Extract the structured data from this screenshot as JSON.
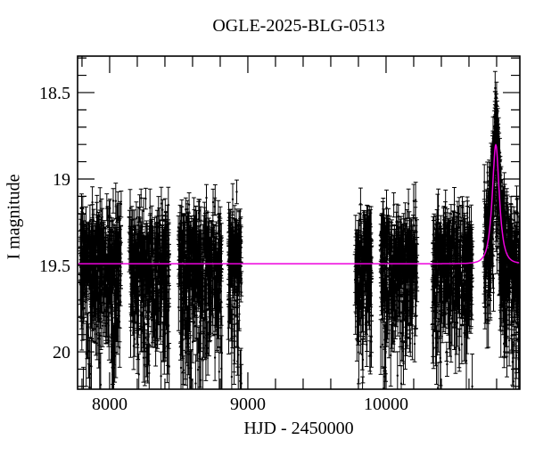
{
  "chart_data": {
    "type": "scatter",
    "title": "OGLE-2025-BLG-0513",
    "xlabel": "HJD - 2450000",
    "ylabel": "I magnitude",
    "xlim": [
      7768,
      10968
    ],
    "ylim": [
      20.216,
      18.289
    ],
    "y_axis_inverted_magnitude": true,
    "grid": false,
    "x_major_ticks": [
      8000,
      9000,
      10000
    ],
    "x_major_tick_labels": [
      "8000",
      "9000",
      "10000"
    ],
    "x_minor_tick_step": 200,
    "y_major_ticks": [
      18.5,
      19.0,
      19.5,
      20.0
    ],
    "y_major_tick_labels": [
      "18.5",
      "19",
      "19.5",
      "20"
    ],
    "y_minor_tick_step": 0.1,
    "colors": {
      "background": "#ffffff",
      "axes": "#000000",
      "data_points": "#000000",
      "model_curve": "#ee00dd"
    },
    "model": {
      "type": "paczynski_microlensing",
      "baseline_mag": 19.49,
      "peak_mag": 18.82,
      "t0": 10794,
      "tE": 40,
      "u0": 0.6
    },
    "observing_seasons": [
      {
        "t_start": 7787,
        "t_end": 8084,
        "n": 430
      },
      {
        "t_start": 8142,
        "t_end": 8432,
        "n": 400
      },
      {
        "t_start": 8497,
        "t_end": 8813,
        "n": 430
      },
      {
        "t_start": 8858,
        "t_end": 8955,
        "n": 140
      },
      {
        "t_start": 9774,
        "t_end": 9897,
        "n": 170
      },
      {
        "t_start": 9961,
        "t_end": 10226,
        "n": 360
      },
      {
        "t_start": 10335,
        "t_end": 10626,
        "n": 390
      },
      {
        "t_start": 10710,
        "t_end": 10968,
        "n": 420,
        "n_extra_peak": 150,
        "peak_sigma_days": 42
      }
    ],
    "scatter": {
      "sigma_bright": 0.14,
      "sigma_faint": 0.27,
      "err_base": 0.05,
      "err_rand": 0.06,
      "err_faint_scale": 0.16,
      "err_faint_ref_mag": 19.3,
      "mag_clip_bright": 18.45,
      "mag_clip_faint": 20.3,
      "seed": 20250513
    }
  }
}
